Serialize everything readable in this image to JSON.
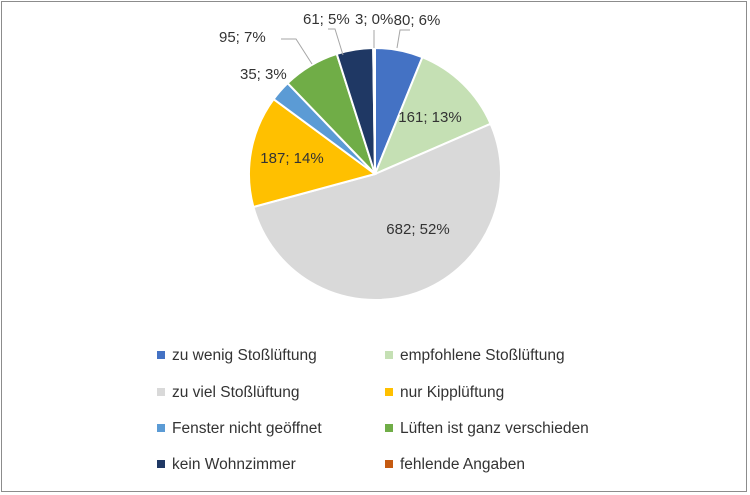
{
  "chart_data": {
    "type": "pie",
    "categories": [
      "zu wenig Stoßlüftung",
      "empfohlene Stoßlüftung",
      "zu viel Stoßlüftung",
      "nur Kipplüftung",
      "Fenster nicht geöffnet",
      "Lüften ist ganz verschieden",
      "kein Wohnzimmer",
      "fehlende Angaben"
    ],
    "values": [
      80,
      161,
      682,
      187,
      35,
      95,
      61,
      3
    ],
    "data_labels": [
      "80; 6%",
      "161; 13%",
      "682; 52%",
      "187; 14%",
      "35; 3%",
      "95; 7%",
      "61; 5%",
      "3; 0%"
    ],
    "colors": [
      "#4472c4",
      "#c5e0b4",
      "#d9d9d9",
      "#ffc000",
      "#5b9bd5",
      "#70ad47",
      "#1f3864",
      "#c55a11"
    ],
    "legend_position": "bottom",
    "title": ""
  }
}
